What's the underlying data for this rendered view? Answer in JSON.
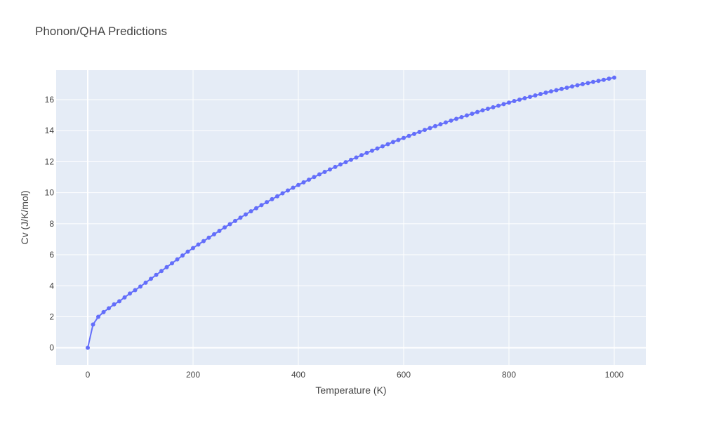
{
  "chart_data": {
    "type": "line",
    "title": "Phonon/QHA Predictions",
    "xlabel": "Temperature (K)",
    "ylabel": "Cv (J/K/mol)",
    "xlim": [
      -60,
      1060
    ],
    "ylim": [
      -1.1,
      17.9
    ],
    "xticks": [
      0,
      200,
      400,
      600,
      800,
      1000
    ],
    "yticks": [
      0,
      2,
      4,
      6,
      8,
      10,
      12,
      14,
      16
    ],
    "grid": true,
    "legend": "none",
    "colors": {
      "series": "#636efa",
      "plot_bg": "#e5ecf6",
      "grid": "#ffffff"
    },
    "series": [
      {
        "x": [
          0,
          10,
          20,
          30,
          40,
          50,
          60,
          70,
          80,
          90,
          100,
          110,
          120,
          130,
          140,
          150,
          160,
          170,
          180,
          190,
          200,
          210,
          220,
          230,
          240,
          250,
          260,
          270,
          280,
          290,
          300,
          310,
          320,
          330,
          340,
          350,
          360,
          370,
          380,
          390,
          400,
          410,
          420,
          430,
          440,
          450,
          460,
          470,
          480,
          490,
          500,
          510,
          520,
          530,
          540,
          550,
          560,
          570,
          580,
          590,
          600,
          610,
          620,
          630,
          640,
          650,
          660,
          670,
          680,
          690,
          700,
          710,
          720,
          730,
          740,
          750,
          760,
          770,
          780,
          790,
          800,
          810,
          820,
          830,
          840,
          850,
          860,
          870,
          880,
          890,
          900,
          910,
          920,
          930,
          940,
          950,
          960,
          970,
          980,
          990,
          1000
        ],
        "y": [
          0,
          1.5,
          2.0,
          2.3,
          2.55,
          2.8,
          3.0,
          3.25,
          3.5,
          3.72,
          3.95,
          4.2,
          4.45,
          4.7,
          4.95,
          5.2,
          5.45,
          5.7,
          5.95,
          6.2,
          6.43,
          6.66,
          6.88,
          7.1,
          7.32,
          7.54,
          7.76,
          7.97,
          8.18,
          8.39,
          8.6,
          8.8,
          9.0,
          9.2,
          9.39,
          9.58,
          9.77,
          9.96,
          10.14,
          10.32,
          10.5,
          10.67,
          10.84,
          11.01,
          11.18,
          11.34,
          11.5,
          11.66,
          11.82,
          11.97,
          12.12,
          12.27,
          12.42,
          12.57,
          12.71,
          12.85,
          12.99,
          13.13,
          13.27,
          13.4,
          13.53,
          13.66,
          13.79,
          13.92,
          14.05,
          14.17,
          14.29,
          14.41,
          14.53,
          14.65,
          14.76,
          14.87,
          14.98,
          15.09,
          15.2,
          15.31,
          15.41,
          15.51,
          15.61,
          15.71,
          15.81,
          15.91,
          16.0,
          16.09,
          16.18,
          16.27,
          16.36,
          16.45,
          16.53,
          16.61,
          16.69,
          16.77,
          16.85,
          16.93,
          17.0,
          17.07,
          17.14,
          17.21,
          17.28,
          17.35,
          17.42
        ]
      }
    ]
  }
}
